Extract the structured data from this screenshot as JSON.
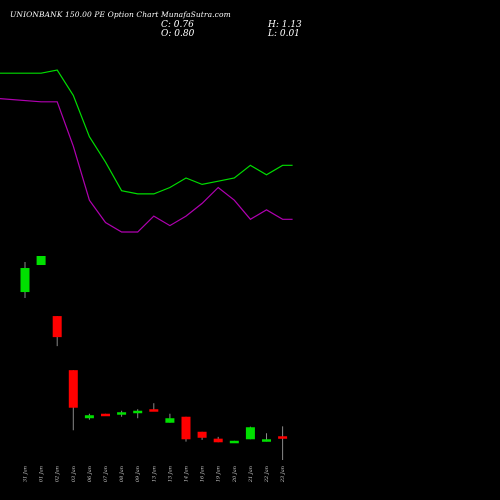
{
  "header": {
    "title": "UNIONBANK 150.00  PE Option  Chart MunafaSutra.com",
    "close": "C: 0.76",
    "open": "O: 0.80",
    "high": "H: 1.13",
    "low": "L: 0.01"
  },
  "colors": {
    "background": "#000000",
    "bull": "#00e000",
    "bear": "#ff0000",
    "green_line": "#00dd00",
    "magenta_line": "#b000b0",
    "wick": "#888888"
  },
  "chart_data": {
    "type": "candlestick",
    "categories": [
      "31 Jan",
      "01 Jan",
      "02 Jan",
      "03 Jan",
      "06 Jan",
      "07 Jan",
      "08 Jan",
      "09 Jan",
      "13 Jan",
      "13 Jan",
      "14 Jan",
      "16 Jan",
      "19 Jan",
      "20 Jan",
      "21 Jan",
      "22 Jan",
      "23 Jan"
    ],
    "candles": [
      {
        "o": 5.6,
        "c": 6.4,
        "h": 6.6,
        "l": 5.4,
        "dir": "up"
      },
      {
        "o": 6.5,
        "c": 6.8,
        "h": 6.8,
        "l": 6.5,
        "dir": "up"
      },
      {
        "o": 4.8,
        "c": 4.1,
        "h": 4.8,
        "l": 3.8,
        "dir": "down"
      },
      {
        "o": 3.0,
        "c": 1.75,
        "h": 3.0,
        "l": 1.0,
        "dir": "down"
      },
      {
        "o": 1.4,
        "c": 1.5,
        "h": 1.55,
        "l": 1.35,
        "dir": "up"
      },
      {
        "o": 1.55,
        "c": 1.5,
        "h": 1.55,
        "l": 1.5,
        "dir": "down"
      },
      {
        "o": 1.55,
        "c": 1.6,
        "h": 1.65,
        "l": 1.45,
        "dir": "up"
      },
      {
        "o": 1.6,
        "c": 1.65,
        "h": 1.7,
        "l": 1.4,
        "dir": "up"
      },
      {
        "o": 1.7,
        "c": 1.65,
        "h": 1.9,
        "l": 1.65,
        "dir": "down"
      },
      {
        "o": 1.25,
        "c": 1.4,
        "h": 1.55,
        "l": 1.25,
        "dir": "up"
      },
      {
        "o": 1.45,
        "c": 0.7,
        "h": 1.45,
        "l": 0.62,
        "dir": "down"
      },
      {
        "o": 0.95,
        "c": 0.75,
        "h": 0.95,
        "l": 0.68,
        "dir": "down"
      },
      {
        "o": 0.72,
        "c": 0.6,
        "h": 0.78,
        "l": 0.6,
        "dir": "down"
      },
      {
        "o": 0.6,
        "c": 0.65,
        "h": 0.65,
        "l": 0.58,
        "dir": "up"
      },
      {
        "o": 0.7,
        "c": 1.1,
        "h": 1.12,
        "l": 0.7,
        "dir": "up"
      },
      {
        "o": 0.62,
        "c": 0.7,
        "h": 0.9,
        "l": 0.62,
        "dir": "up"
      },
      {
        "o": 0.8,
        "c": 0.76,
        "h": 1.13,
        "l": 0.01,
        "dir": "down"
      }
    ],
    "green_line": [
      420,
      420,
      421,
      413,
      400,
      392,
      383,
      382,
      382,
      384,
      387,
      385,
      386,
      387,
      391,
      388,
      391
    ],
    "magenta_line": [
      412,
      411,
      411,
      397,
      380,
      373,
      370,
      370,
      375,
      372,
      375,
      379,
      384,
      380,
      374,
      377,
      374
    ]
  }
}
